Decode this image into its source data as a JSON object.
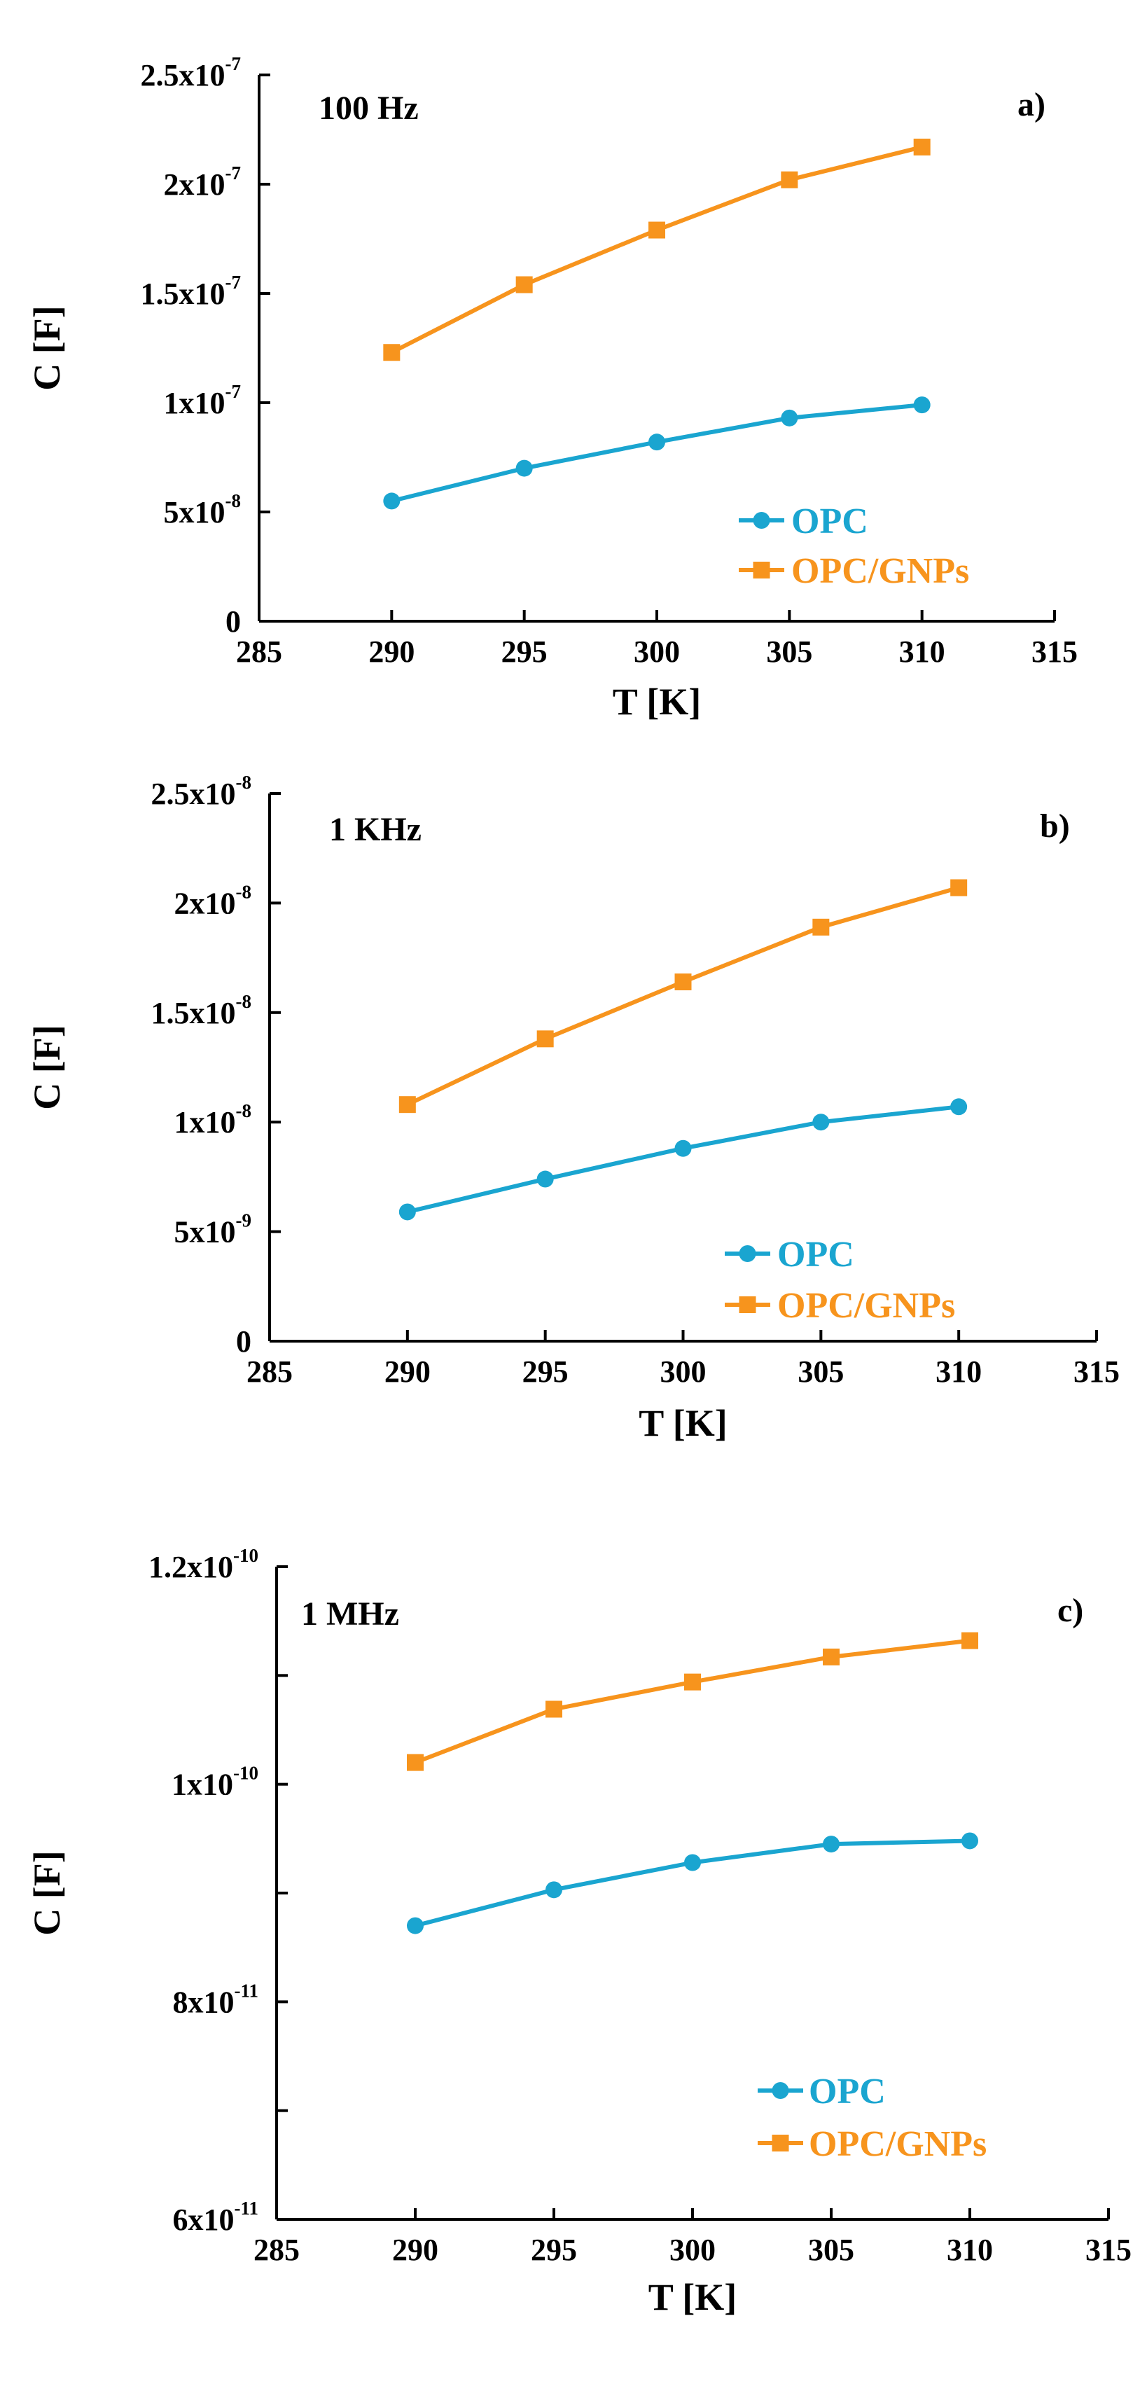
{
  "colors": {
    "opc": "#1aa5d0",
    "opc_gnps": "#f7941d",
    "axis": "#000000"
  },
  "chart_data": [
    {
      "type": "line",
      "panel_label": "a)",
      "annotation": "100 Hz",
      "xlabel": "T [K]",
      "ylabel": "C [F]",
      "xlim": [
        285,
        315
      ],
      "ylim": [
        0,
        2.5e-07
      ],
      "x_ticks": [
        "285",
        "295",
        "300",
        "305",
        "310",
        "315",
        "290"
      ],
      "x_tick_values": [
        285,
        295,
        300,
        305,
        310,
        315,
        290
      ],
      "y_ticks": [
        {
          "value": 0,
          "mantissa": "0",
          "exponent": ""
        },
        {
          "value": 5e-08,
          "mantissa": "5x10",
          "exponent": "-8"
        },
        {
          "value": 1e-07,
          "mantissa": "1x10",
          "exponent": "-7"
        },
        {
          "value": 1.5e-07,
          "mantissa": "1.5x10",
          "exponent": "-7"
        },
        {
          "value": 2e-07,
          "mantissa": "2x10",
          "exponent": "-7"
        },
        {
          "value": 2.5e-07,
          "mantissa": "2.5x10",
          "exponent": "-7"
        }
      ],
      "minor_y_ticks": [],
      "x": [
        290,
        295,
        300,
        305,
        310
      ],
      "series": [
        {
          "name": "OPC",
          "marker": "circle",
          "values": [
            5.5e-08,
            7e-08,
            8.2e-08,
            9.3e-08,
            9.9e-08
          ]
        },
        {
          "name": "OPC/GNPs",
          "marker": "square",
          "values": [
            1.23e-07,
            1.54e-07,
            1.79e-07,
            2.02e-07,
            2.17e-07
          ]
        }
      ]
    },
    {
      "type": "line",
      "panel_label": "b)",
      "annotation": "1 KHz",
      "xlabel": "T [K]",
      "ylabel": "C [F]",
      "xlim": [
        285,
        315
      ],
      "ylim": [
        0,
        2.5e-08
      ],
      "x_ticks": [
        "285",
        "290",
        "295",
        "300",
        "305",
        "310",
        "315"
      ],
      "x_tick_values": [
        285,
        290,
        295,
        300,
        305,
        310,
        315
      ],
      "y_ticks": [
        {
          "value": 0,
          "mantissa": "0",
          "exponent": ""
        },
        {
          "value": 5e-09,
          "mantissa": "5x10",
          "exponent": "-9"
        },
        {
          "value": 1e-08,
          "mantissa": "1x10",
          "exponent": "-8"
        },
        {
          "value": 1.5e-08,
          "mantissa": "1.5x10",
          "exponent": "-8"
        },
        {
          "value": 2e-08,
          "mantissa": "2x10",
          "exponent": "-8"
        },
        {
          "value": 2.5e-08,
          "mantissa": "2.5x10",
          "exponent": "-8"
        }
      ],
      "minor_y_ticks": [],
      "x": [
        290,
        295,
        300,
        305,
        310
      ],
      "series": [
        {
          "name": "OPC",
          "marker": "circle",
          "values": [
            5.9e-09,
            7.4e-09,
            8.8e-09,
            1e-08,
            1.07e-08
          ]
        },
        {
          "name": "OPC/GNPs",
          "marker": "square",
          "values": [
            1.08e-08,
            1.38e-08,
            1.64e-08,
            1.89e-08,
            2.07e-08
          ]
        }
      ]
    },
    {
      "type": "line",
      "panel_label": "c)",
      "annotation": "1 MHz",
      "xlabel": "T [K]",
      "ylabel": "C [F]",
      "xlim": [
        285,
        315
      ],
      "ylim": [
        6e-11,
        1.2e-10
      ],
      "x_ticks": [
        "285",
        "290",
        "295",
        "300",
        "305",
        "310",
        "315"
      ],
      "x_tick_values": [
        285,
        290,
        295,
        300,
        305,
        310,
        315
      ],
      "y_ticks": [
        {
          "value": 6e-11,
          "mantissa": "6x10",
          "exponent": "-11"
        },
        {
          "value": 8e-11,
          "mantissa": "8x10",
          "exponent": "-11"
        },
        {
          "value": 1e-10,
          "mantissa": "1x10",
          "exponent": "-10"
        },
        {
          "value": 1.2e-10,
          "mantissa": "1.2x10",
          "exponent": "-10"
        }
      ],
      "minor_y_ticks": [
        7e-11,
        9e-11,
        1.1e-10
      ],
      "x": [
        290,
        295,
        300,
        305,
        310
      ],
      "series": [
        {
          "name": "OPC",
          "marker": "circle",
          "values": [
            8.7e-11,
            9.03e-11,
            9.28e-11,
            9.45e-11,
            9.48e-11
          ]
        },
        {
          "name": "OPC/GNPs",
          "marker": "square",
          "values": [
            1.02e-10,
            1.069e-10,
            1.094e-10,
            1.117e-10,
            1.132e-10
          ]
        }
      ]
    }
  ]
}
